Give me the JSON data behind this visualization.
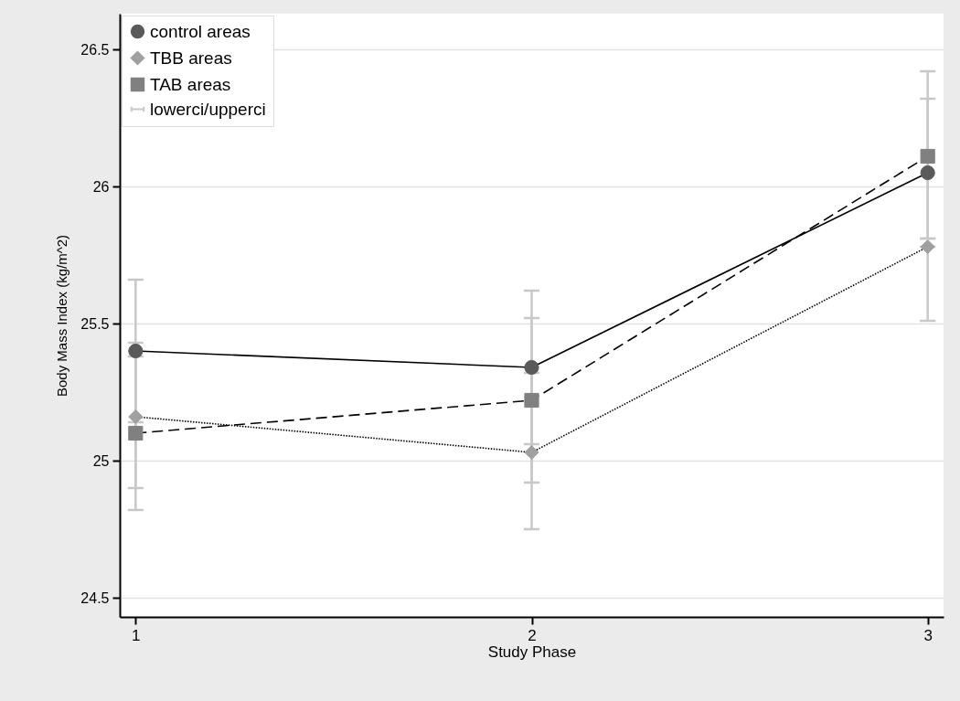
{
  "chart_data": {
    "type": "line",
    "xlabel": "Study Phase",
    "ylabel": "Body Mass Index (kg/m^2)",
    "x": [
      1,
      2,
      3
    ],
    "xlim": [
      0.96,
      3.04
    ],
    "xticks": [
      1,
      2,
      3
    ],
    "ylim": [
      24.43,
      26.63
    ],
    "yticks": [
      24.5,
      25,
      25.5,
      26,
      26.5
    ],
    "grid": "y",
    "legend": "top left",
    "series": [
      {
        "name": "control areas",
        "color": "#5a5a5a",
        "marker": "circle",
        "line_style": "solid",
        "values": [
          25.4,
          25.34,
          26.05
        ],
        "errors": [
          [
            25.14,
            25.66
          ],
          [
            25.06,
            25.62
          ],
          [
            25.81,
            26.32
          ]
        ]
      },
      {
        "name": "TBB areas",
        "color": "#a0a0a0",
        "marker": "diamond",
        "line_style": "dotted",
        "values": [
          25.16,
          25.03,
          25.78
        ],
        "errors": [
          [
            24.9,
            25.43
          ],
          [
            24.75,
            25.32
          ],
          [
            25.51,
            25.78
          ]
        ]
      },
      {
        "name": "TAB areas",
        "color": "#808080",
        "marker": "square",
        "line_style": "dashed",
        "values": [
          25.1,
          25.22,
          26.11
        ],
        "errors": [
          [
            24.82,
            25.38
          ],
          [
            24.92,
            25.52
          ],
          [
            25.81,
            26.42
          ]
        ]
      }
    ],
    "annotations": [
      "lowerci/upperci"
    ]
  }
}
